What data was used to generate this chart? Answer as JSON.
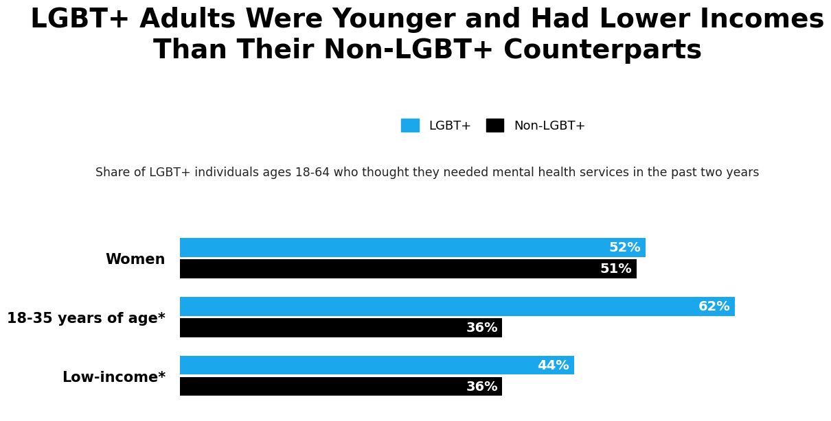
{
  "title": "LGBT+ Adults Were Younger and Had Lower Incomes\nThan Their Non-LGBT+ Counterparts",
  "subtitle": "Share of LGBT+ individuals ages 18-64 who thought they needed mental health services in the past two years",
  "categories": [
    "Women",
    "18-35 years of age*",
    "Low-income*"
  ],
  "lgbt_values": [
    52,
    62,
    44
  ],
  "non_lgbt_values": [
    51,
    36,
    36
  ],
  "lgbt_color": "#1AA7EC",
  "non_lgbt_color": "#000000",
  "background_color": "#ffffff",
  "bar_label_color": "#ffffff",
  "legend_labels": [
    "LGBT+",
    "Non-LGBT+"
  ],
  "xlim": [
    0,
    70
  ],
  "bar_height": 0.32,
  "bar_gap": 0.04,
  "title_fontsize": 28,
  "subtitle_fontsize": 12.5,
  "category_fontsize": 15,
  "label_fontsize": 14
}
